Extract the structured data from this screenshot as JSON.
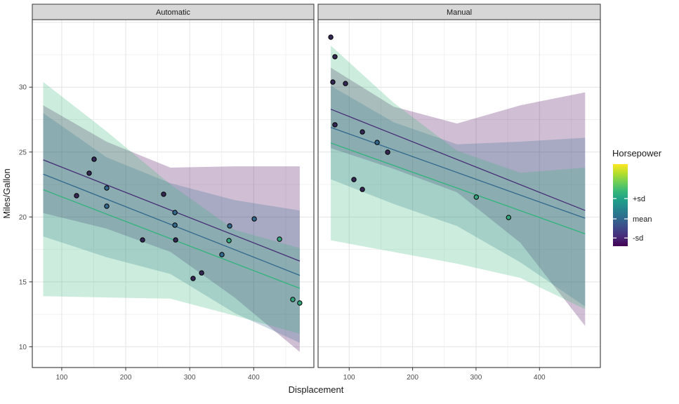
{
  "chart_data": {
    "type": "scatter",
    "description": "Faceted scatter plot with linear trend lines at Horsepower = mean and mean +/- sd, each with translucent confidence ribbons",
    "facets": [
      {
        "label": "Automatic",
        "x_domain": [
          54,
          494
        ],
        "x_ticks": [
          100,
          200,
          300,
          400
        ],
        "x_minor": [
          150,
          250,
          350,
          450
        ],
        "points": [
          {
            "x": 150.6,
            "y": 24.45,
            "c": "dark"
          },
          {
            "x": 142.9,
            "y": 23.37,
            "c": "dark"
          },
          {
            "x": 170.3,
            "y": 22.23,
            "c": "teal"
          },
          {
            "x": 123.1,
            "y": 21.64,
            "c": "dark"
          },
          {
            "x": 259.2,
            "y": 21.75,
            "c": "dark"
          },
          {
            "x": 170.3,
            "y": 20.83,
            "c": "teal"
          },
          {
            "x": 276.8,
            "y": 20.34,
            "c": "teal"
          },
          {
            "x": 276.8,
            "y": 19.37,
            "c": "teal"
          },
          {
            "x": 277.9,
            "y": 18.23,
            "c": "dark"
          },
          {
            "x": 226.3,
            "y": 18.23,
            "c": "dark"
          },
          {
            "x": 362.4,
            "y": 19.31,
            "c": "teal"
          },
          {
            "x": 400.8,
            "y": 19.85,
            "c": "teal"
          },
          {
            "x": 361.3,
            "y": 18.18,
            "c": "green"
          },
          {
            "x": 440.3,
            "y": 18.29,
            "c": "green"
          },
          {
            "x": 350.3,
            "y": 17.1,
            "c": "teal"
          },
          {
            "x": 318.5,
            "y": 15.69,
            "c": "dark"
          },
          {
            "x": 305.3,
            "y": 15.26,
            "c": "dark"
          },
          {
            "x": 461.1,
            "y": 13.64,
            "c": "green"
          },
          {
            "x": 472.0,
            "y": 13.37,
            "c": "green"
          }
        ],
        "lines": [
          {
            "id": "-sd",
            "x": [
              71,
              472
            ],
            "y": [
              24.4,
              16.6
            ]
          },
          {
            "id": "mean",
            "x": [
              71,
              472
            ],
            "y": [
              23.3,
              15.5
            ]
          },
          {
            "id": "+sd",
            "x": [
              71,
              472
            ],
            "y": [
              22.1,
              14.5
            ]
          }
        ],
        "ribbons": [
          {
            "id": "-sd",
            "x": [
              71,
              170,
              270,
              370,
              472
            ],
            "upper": [
              28.6,
              25.8,
              23.8,
              23.9,
              23.9
            ],
            "lower": [
              20.3,
              19.1,
              17.3,
              13.8,
              9.6
            ]
          },
          {
            "id": "mean",
            "x": [
              71,
              170,
              270,
              370,
              472
            ],
            "upper": [
              28.0,
              24.6,
              22.6,
              21.3,
              20.5
            ],
            "lower": [
              18.5,
              16.9,
              15.6,
              12.6,
              10.3
            ]
          },
          {
            "id": "+sd",
            "x": [
              71,
              170,
              270,
              370,
              472
            ],
            "upper": [
              30.4,
              26.6,
              22.5,
              19.0,
              17.6
            ],
            "lower": [
              13.9,
              13.8,
              13.7,
              12.4,
              11.0
            ]
          }
        ]
      },
      {
        "label": "Manual",
        "x_domain": [
          51,
          496
        ],
        "x_ticks": [
          100,
          200,
          300,
          400
        ],
        "x_minor": [
          150,
          250,
          350,
          450
        ],
        "points": [
          {
            "x": 71.0,
            "y": 33.85,
            "c": "dark"
          },
          {
            "x": 77.6,
            "y": 32.34,
            "c": "dark"
          },
          {
            "x": 74.3,
            "y": 30.39,
            "c": "dark"
          },
          {
            "x": 94.2,
            "y": 30.28,
            "c": "dark"
          },
          {
            "x": 77.6,
            "y": 27.1,
            "c": "dark"
          },
          {
            "x": 120.8,
            "y": 26.55,
            "c": "dark"
          },
          {
            "x": 144.1,
            "y": 25.74,
            "c": "teal"
          },
          {
            "x": 160.7,
            "y": 24.99,
            "c": "dark"
          },
          {
            "x": 107.5,
            "y": 22.88,
            "c": "dark"
          },
          {
            "x": 120.8,
            "y": 22.12,
            "c": "dark"
          },
          {
            "x": 300.4,
            "y": 21.53,
            "c": "green"
          },
          {
            "x": 351.3,
            "y": 19.96,
            "c": "green"
          }
        ],
        "lines": [
          {
            "id": "-sd",
            "x": [
              71,
              472
            ],
            "y": [
              28.3,
              20.5
            ]
          },
          {
            "id": "mean",
            "x": [
              71,
              472
            ],
            "y": [
              26.9,
              19.9
            ]
          },
          {
            "id": "+sd",
            "x": [
              71,
              472
            ],
            "y": [
              25.7,
              18.7
            ]
          }
        ],
        "ribbons": [
          {
            "id": "-sd",
            "x": [
              71,
              170,
              270,
              370,
              472
            ],
            "upper": [
              31.5,
              28.5,
              27.2,
              28.6,
              29.6
            ],
            "lower": [
              25.3,
              23.7,
              21.9,
              18.0,
              11.6
            ]
          },
          {
            "id": "mean",
            "x": [
              71,
              170,
              270,
              370,
              472
            ],
            "upper": [
              30.1,
              27.3,
              25.6,
              25.8,
              26.1
            ],
            "lower": [
              22.9,
              21.0,
              19.3,
              16.5,
              13.1
            ]
          },
          {
            "id": "+sd",
            "x": [
              71,
              170,
              270,
              370,
              472
            ],
            "upper": [
              33.2,
              28.8,
              25.1,
              23.4,
              23.8
            ],
            "lower": [
              18.2,
              17.3,
              16.4,
              15.3,
              12.9
            ]
          }
        ]
      }
    ],
    "axes": {
      "x": {
        "title": "Displacement"
      },
      "y": {
        "title": "Miles/Gallon",
        "domain": [
          8.4,
          35.2
        ],
        "ticks": [
          10,
          15,
          20,
          25,
          30
        ],
        "major_unlabeled": [
          35
        ],
        "minor": [
          12.5,
          17.5,
          22.5,
          27.5,
          32.5
        ]
      }
    },
    "legend": {
      "title": "Horsepower",
      "ticks": [
        {
          "label": "+sd",
          "f": 0.42
        },
        {
          "label": "mean",
          "f": 0.667
        },
        {
          "label": "-sd",
          "f": 0.9
        }
      ],
      "gradient_top_to_bottom": [
        "#fde725",
        "#b5de2b",
        "#6ece58",
        "#35b779",
        "#1f9e89",
        "#26828e",
        "#31688e",
        "#3e4989",
        "#482878",
        "#440154"
      ]
    },
    "colors": {
      "line_minus_sd": "#452d76",
      "line_mean": "#33688e",
      "line_plus_sd": "#30b47c",
      "ribbon_minus_sd": "#440154",
      "ribbon_mean": "#31688e",
      "ribbon_plus_sd": "#35b779",
      "point_dark": "#332753",
      "point_teal": "#33678c",
      "point_green": "#35a57d",
      "strip_fill": "#d7d7d7",
      "panel_border": "#343434",
      "grid_major": "#e3e3e3",
      "grid_minor": "#f0f0f0",
      "tick_mark": "#333333"
    }
  }
}
